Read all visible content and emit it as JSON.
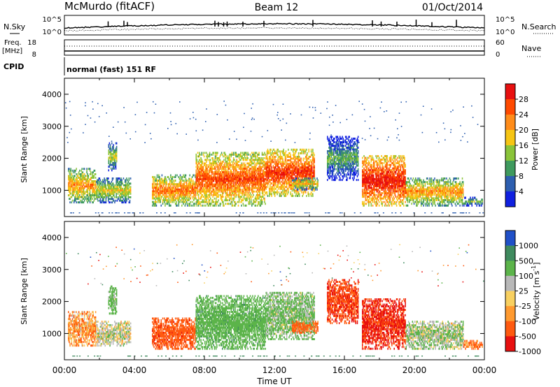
{
  "header": {
    "station": "McMurdo (fitACF)",
    "beam": "Beam 12",
    "date": "01/Oct/2014"
  },
  "summary": {
    "nsky_label": "N.Sky",
    "nsky_ticks": [
      "10^5",
      "10^0"
    ],
    "nsearch_label": "N.Search",
    "nsearch_ticks": [
      "10^5",
      "10^0"
    ],
    "freq_label_1": "Freq.",
    "freq_label_2": "[MHz]",
    "freq_ticks": [
      "18",
      "8"
    ],
    "nave_label": "Nave",
    "nave_ticks": [
      "60",
      "0"
    ],
    "cpid_label": "CPID",
    "cpid_text": "normal (fast) 151 RF"
  },
  "axes": {
    "ylabel": "Slant Range [km]",
    "xlabel": "Time UT",
    "x_ticks": [
      "00:00",
      "04:00",
      "08:00",
      "12:00",
      "16:00",
      "20:00",
      "00:00"
    ],
    "y_ticks": [
      "1000",
      "2000",
      "3000",
      "4000"
    ]
  },
  "colorbars": {
    "power": {
      "label": "Power [dB]",
      "ticks": [
        "28",
        "24",
        "20",
        "16",
        "12",
        "8",
        "4"
      ],
      "colors": [
        "#e81010",
        "#ff4a00",
        "#ff8c1a",
        "#f6c514",
        "#8ac43a",
        "#3f9a5e",
        "#2d5fb0",
        "#1020e0"
      ]
    },
    "velocity": {
      "label_main": "Velocity [m s",
      "label_sup": "-1",
      "label_end": "]",
      "ticks": [
        "1000",
        "500",
        "100",
        "25",
        "-25",
        "-100",
        "-500",
        "-1000"
      ],
      "colors": [
        "#2050c8",
        "#3f8a5e",
        "#5cb44a",
        "#b8b8b8",
        "#f8d060",
        "#ff9a30",
        "#ff5a10",
        "#e81010"
      ]
    }
  },
  "chart_data": {
    "type": "heatmap",
    "x_range_hours": [
      0,
      24
    ],
    "y_range_km": [
      180,
      4500
    ],
    "power_range_db": [
      0,
      30
    ],
    "velocity_range_ms": [
      -1000,
      1000
    ],
    "echo_regions": [
      {
        "t_start": 0.2,
        "t_end": 1.8,
        "r_min": 600,
        "r_max": 1700,
        "power": 16,
        "velocity": -60
      },
      {
        "t_start": 1.8,
        "t_end": 3.8,
        "r_min": 600,
        "r_max": 1400,
        "power": 12,
        "velocity": 40
      },
      {
        "t_start": 2.5,
        "t_end": 3.0,
        "r_min": 1600,
        "r_max": 2500,
        "power": 10,
        "velocity": 150
      },
      {
        "t_start": 5.0,
        "t_end": 7.5,
        "r_min": 500,
        "r_max": 1500,
        "power": 18,
        "velocity": -300
      },
      {
        "t_start": 7.5,
        "t_end": 11.5,
        "r_min": 500,
        "r_max": 2200,
        "power": 20,
        "velocity": 300
      },
      {
        "t_start": 11.5,
        "t_end": 14.3,
        "r_min": 800,
        "r_max": 2300,
        "power": 22,
        "velocity": 120
      },
      {
        "t_start": 13.0,
        "t_end": 14.5,
        "r_min": 1000,
        "r_max": 1400,
        "power": 14,
        "velocity": -150
      },
      {
        "t_start": 15.0,
        "t_end": 16.8,
        "r_min": 1300,
        "r_max": 2700,
        "power": 6,
        "velocity": -400
      },
      {
        "t_start": 17.0,
        "t_end": 19.5,
        "r_min": 500,
        "r_max": 2100,
        "power": 24,
        "velocity": -550
      },
      {
        "t_start": 19.5,
        "t_end": 22.8,
        "r_min": 500,
        "r_max": 1400,
        "power": 16,
        "velocity": 80
      },
      {
        "t_start": 22.8,
        "t_end": 23.9,
        "r_min": 500,
        "r_max": 800,
        "power": 10,
        "velocity": -120
      }
    ]
  }
}
